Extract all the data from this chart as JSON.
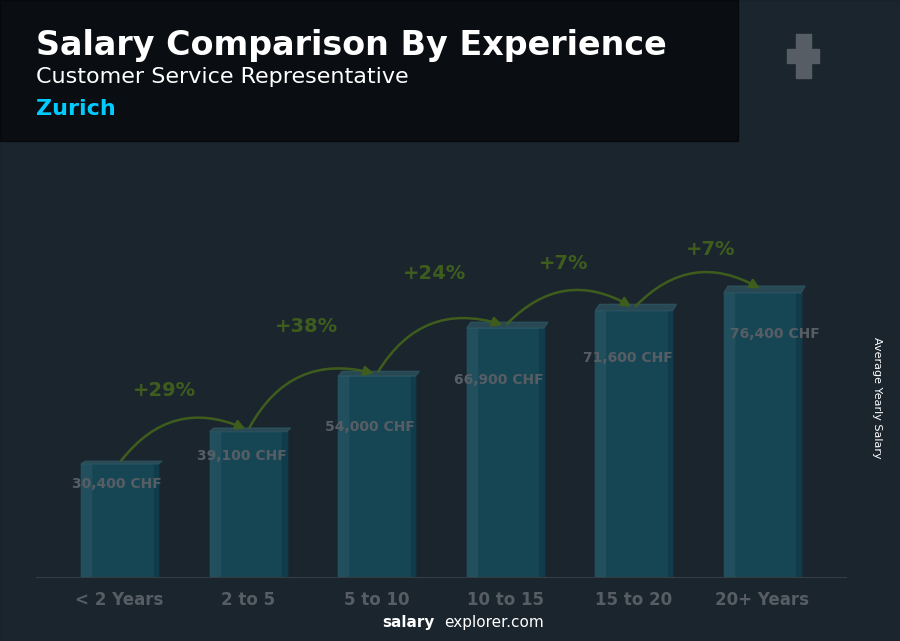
{
  "title": "Salary Comparison By Experience",
  "subtitle": "Customer Service Representative",
  "city": "Zurich",
  "categories": [
    "< 2 Years",
    "2 to 5",
    "5 to 10",
    "10 to 15",
    "15 to 20",
    "20+ Years"
  ],
  "values": [
    30400,
    39100,
    54000,
    66900,
    71600,
    76400
  ],
  "pct_labels": [
    "+29%",
    "+38%",
    "+24%",
    "+7%",
    "+7%"
  ],
  "val_labels": [
    "39,100 CHF",
    "54,000 CHF",
    "66,900 CHF",
    "71,600 CHF",
    "76,400 CHF"
  ],
  "first_val_label": "30,400 CHF",
  "bar_color_main": "#1ab8d8",
  "bar_color_light": "#50d8f0",
  "bar_color_dark": "#0080a0",
  "bar_color_shadow": "#005070",
  "bar_width": 0.6,
  "bg_dark": "#1a2a35",
  "title_color": "#ffffff",
  "subtitle_color": "#ffffff",
  "city_color": "#00ccff",
  "value_label_color": "#ffffff",
  "pct_color": "#aaff00",
  "arrow_color": "#aaff00",
  "ylabel": "Average Yearly Salary",
  "footer_bold": "salary",
  "footer_rest": "explorer.com",
  "ylim": [
    0,
    100000
  ],
  "flag_bg": "#cc0000",
  "title_fontsize": 24,
  "subtitle_fontsize": 16,
  "city_fontsize": 16,
  "value_fontsize": 10,
  "pct_fontsize": 14,
  "cat_fontsize": 12
}
